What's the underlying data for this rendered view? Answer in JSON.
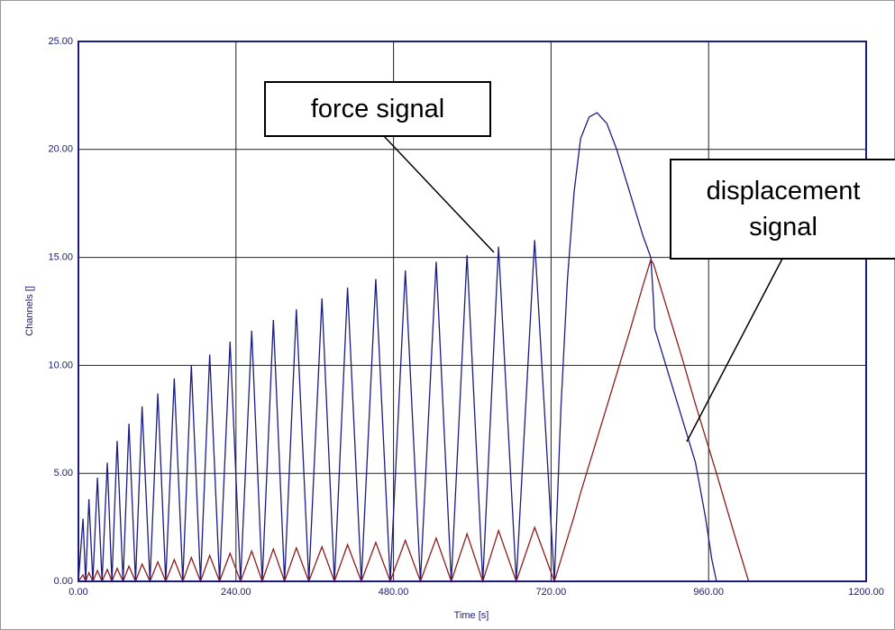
{
  "chart_data": {
    "type": "line",
    "x_label": "Time [s]",
    "y_label": "Channels []",
    "x": [
      0,
      7,
      11,
      16,
      22,
      29,
      36,
      44,
      51,
      59,
      68,
      77,
      87,
      97,
      109,
      121,
      133,
      146,
      159,
      172,
      186,
      200,
      215,
      231,
      247,
      264,
      280,
      297,
      314,
      332,
      351,
      371,
      390,
      410,
      431,
      453,
      475,
      498,
      521,
      545,
      568,
      592,
      616,
      640,
      667,
      695,
      725,
      735,
      745,
      755,
      765,
      778,
      790,
      805,
      820,
      840,
      860,
      872,
      876,
      878,
      900,
      920,
      940,
      955,
      965,
      972,
      1000,
      1021
    ],
    "series": [
      {
        "name": "force signal",
        "color": "#1c1c82",
        "values": [
          0,
          2.9,
          0,
          3.8,
          0,
          4.8,
          0,
          5.5,
          0,
          6.5,
          0,
          7.3,
          0,
          8.1,
          0,
          8.7,
          0,
          9.4,
          0,
          10.0,
          0,
          10.5,
          0,
          11.1,
          0,
          11.6,
          0,
          12.1,
          0,
          12.6,
          0,
          13.1,
          0,
          13.6,
          0,
          14.0,
          0,
          14.4,
          0,
          14.8,
          0,
          15.1,
          0,
          15.5,
          0,
          15.8,
          0,
          8,
          14,
          18,
          20.5,
          21.5,
          21.7,
          21.2,
          20,
          18,
          16,
          15,
          13,
          11.7,
          9.5,
          7.5,
          5.5,
          3,
          1,
          0,
          null,
          null
        ]
      },
      {
        "name": "displacement signal",
        "color": "#8e1c1c",
        "values": [
          0,
          0.3,
          0,
          0.4,
          0,
          0.5,
          0,
          0.55,
          0,
          0.6,
          0,
          0.7,
          0,
          0.8,
          0,
          0.9,
          0,
          1.0,
          0,
          1.1,
          0,
          1.2,
          0,
          1.3,
          0,
          1.4,
          0,
          1.5,
          0,
          1.55,
          0,
          1.6,
          0,
          1.7,
          0,
          1.8,
          0,
          1.9,
          0,
          2.0,
          0,
          2.2,
          0,
          2.35,
          0,
          2.5,
          0,
          1.0,
          2.0,
          3.0,
          4.1,
          5.4,
          6.6,
          8.1,
          9.6,
          11.6,
          13.7,
          14.9,
          14.7,
          14.5,
          12.3,
          10.3,
          8.2,
          6.7,
          5.7,
          5.0,
          2.1,
          0
        ]
      }
    ],
    "xlim": [
      0,
      1200
    ],
    "xticks": [
      {
        "value": 0,
        "label": "0.00"
      },
      {
        "value": 240,
        "label": "240.00"
      },
      {
        "value": 480,
        "label": "480.00"
      },
      {
        "value": 720,
        "label": "720.00"
      },
      {
        "value": 960,
        "label": "960.00"
      },
      {
        "value": 1200,
        "label": "1200.00"
      }
    ],
    "ylim": [
      0,
      25
    ],
    "yticks": [
      {
        "value": 0,
        "label": "0.00"
      },
      {
        "value": 5,
        "label": "5.00"
      },
      {
        "value": 10,
        "label": "10.00"
      },
      {
        "value": 15,
        "label": "15.00"
      },
      {
        "value": 20,
        "label": "20.00"
      },
      {
        "value": 25,
        "label": "25.00"
      }
    ],
    "grid": true,
    "annotations": [
      {
        "text": "force signal"
      },
      {
        "text": "displacement signal"
      }
    ]
  }
}
